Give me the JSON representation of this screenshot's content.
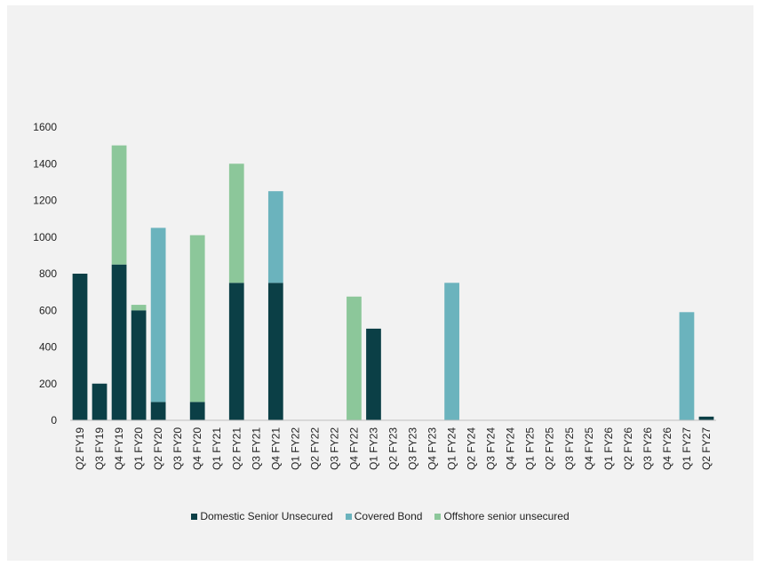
{
  "chart_data": {
    "type": "bar",
    "stacked": true,
    "categories": [
      "Q2 FY19",
      "Q3 FY19",
      "Q4 FY19",
      "Q1 FY20",
      "Q2 FY20",
      "Q3 FY20",
      "Q4 FY20",
      "Q1 FY21",
      "Q2 FY21",
      "Q3 FY21",
      "Q4 FY21",
      "Q1 FY22",
      "Q2 FY22",
      "Q3 FY22",
      "Q4 FY22",
      "Q1 FY23",
      "Q2 FY23",
      "Q3 FY23",
      "Q4 FY23",
      "Q1 FY24",
      "Q2 FY24",
      "Q3 FY24",
      "Q4 FY24",
      "Q1 FY25",
      "Q2 FY25",
      "Q3 FY25",
      "Q4 FY25",
      "Q1 FY26",
      "Q2 FY26",
      "Q3 FY26",
      "Q4 FY26",
      "Q1 FY27",
      "Q2 FY27"
    ],
    "series": [
      {
        "name": "Domestic Senior Unsecured",
        "color": "#0b3f46",
        "values": [
          800,
          200,
          850,
          600,
          100,
          0,
          100,
          0,
          750,
          0,
          750,
          0,
          0,
          0,
          0,
          500,
          0,
          0,
          0,
          0,
          0,
          0,
          0,
          0,
          0,
          0,
          0,
          0,
          0,
          0,
          0,
          0,
          20
        ]
      },
      {
        "name": "Covered Bond",
        "color": "#6bb3bd",
        "values": [
          0,
          0,
          0,
          0,
          950,
          0,
          0,
          0,
          0,
          0,
          500,
          0,
          0,
          0,
          0,
          0,
          0,
          0,
          0,
          750,
          0,
          0,
          0,
          0,
          0,
          0,
          0,
          0,
          0,
          0,
          0,
          590,
          0
        ]
      },
      {
        "name": "Offshore senior unsecured",
        "color": "#8cc79a",
        "values": [
          0,
          0,
          650,
          30,
          0,
          0,
          910,
          0,
          650,
          0,
          0,
          0,
          0,
          0,
          675,
          0,
          0,
          0,
          0,
          0,
          0,
          0,
          0,
          0,
          0,
          0,
          0,
          0,
          0,
          0,
          0,
          0,
          0
        ]
      }
    ],
    "y_ticks": [
      "0",
      "200",
      "400",
      "600",
      "800",
      "1000",
      "1200",
      "1400",
      "1600"
    ],
    "ylim": [
      0,
      1600
    ],
    "grid": false,
    "legend_position": "bottom"
  }
}
